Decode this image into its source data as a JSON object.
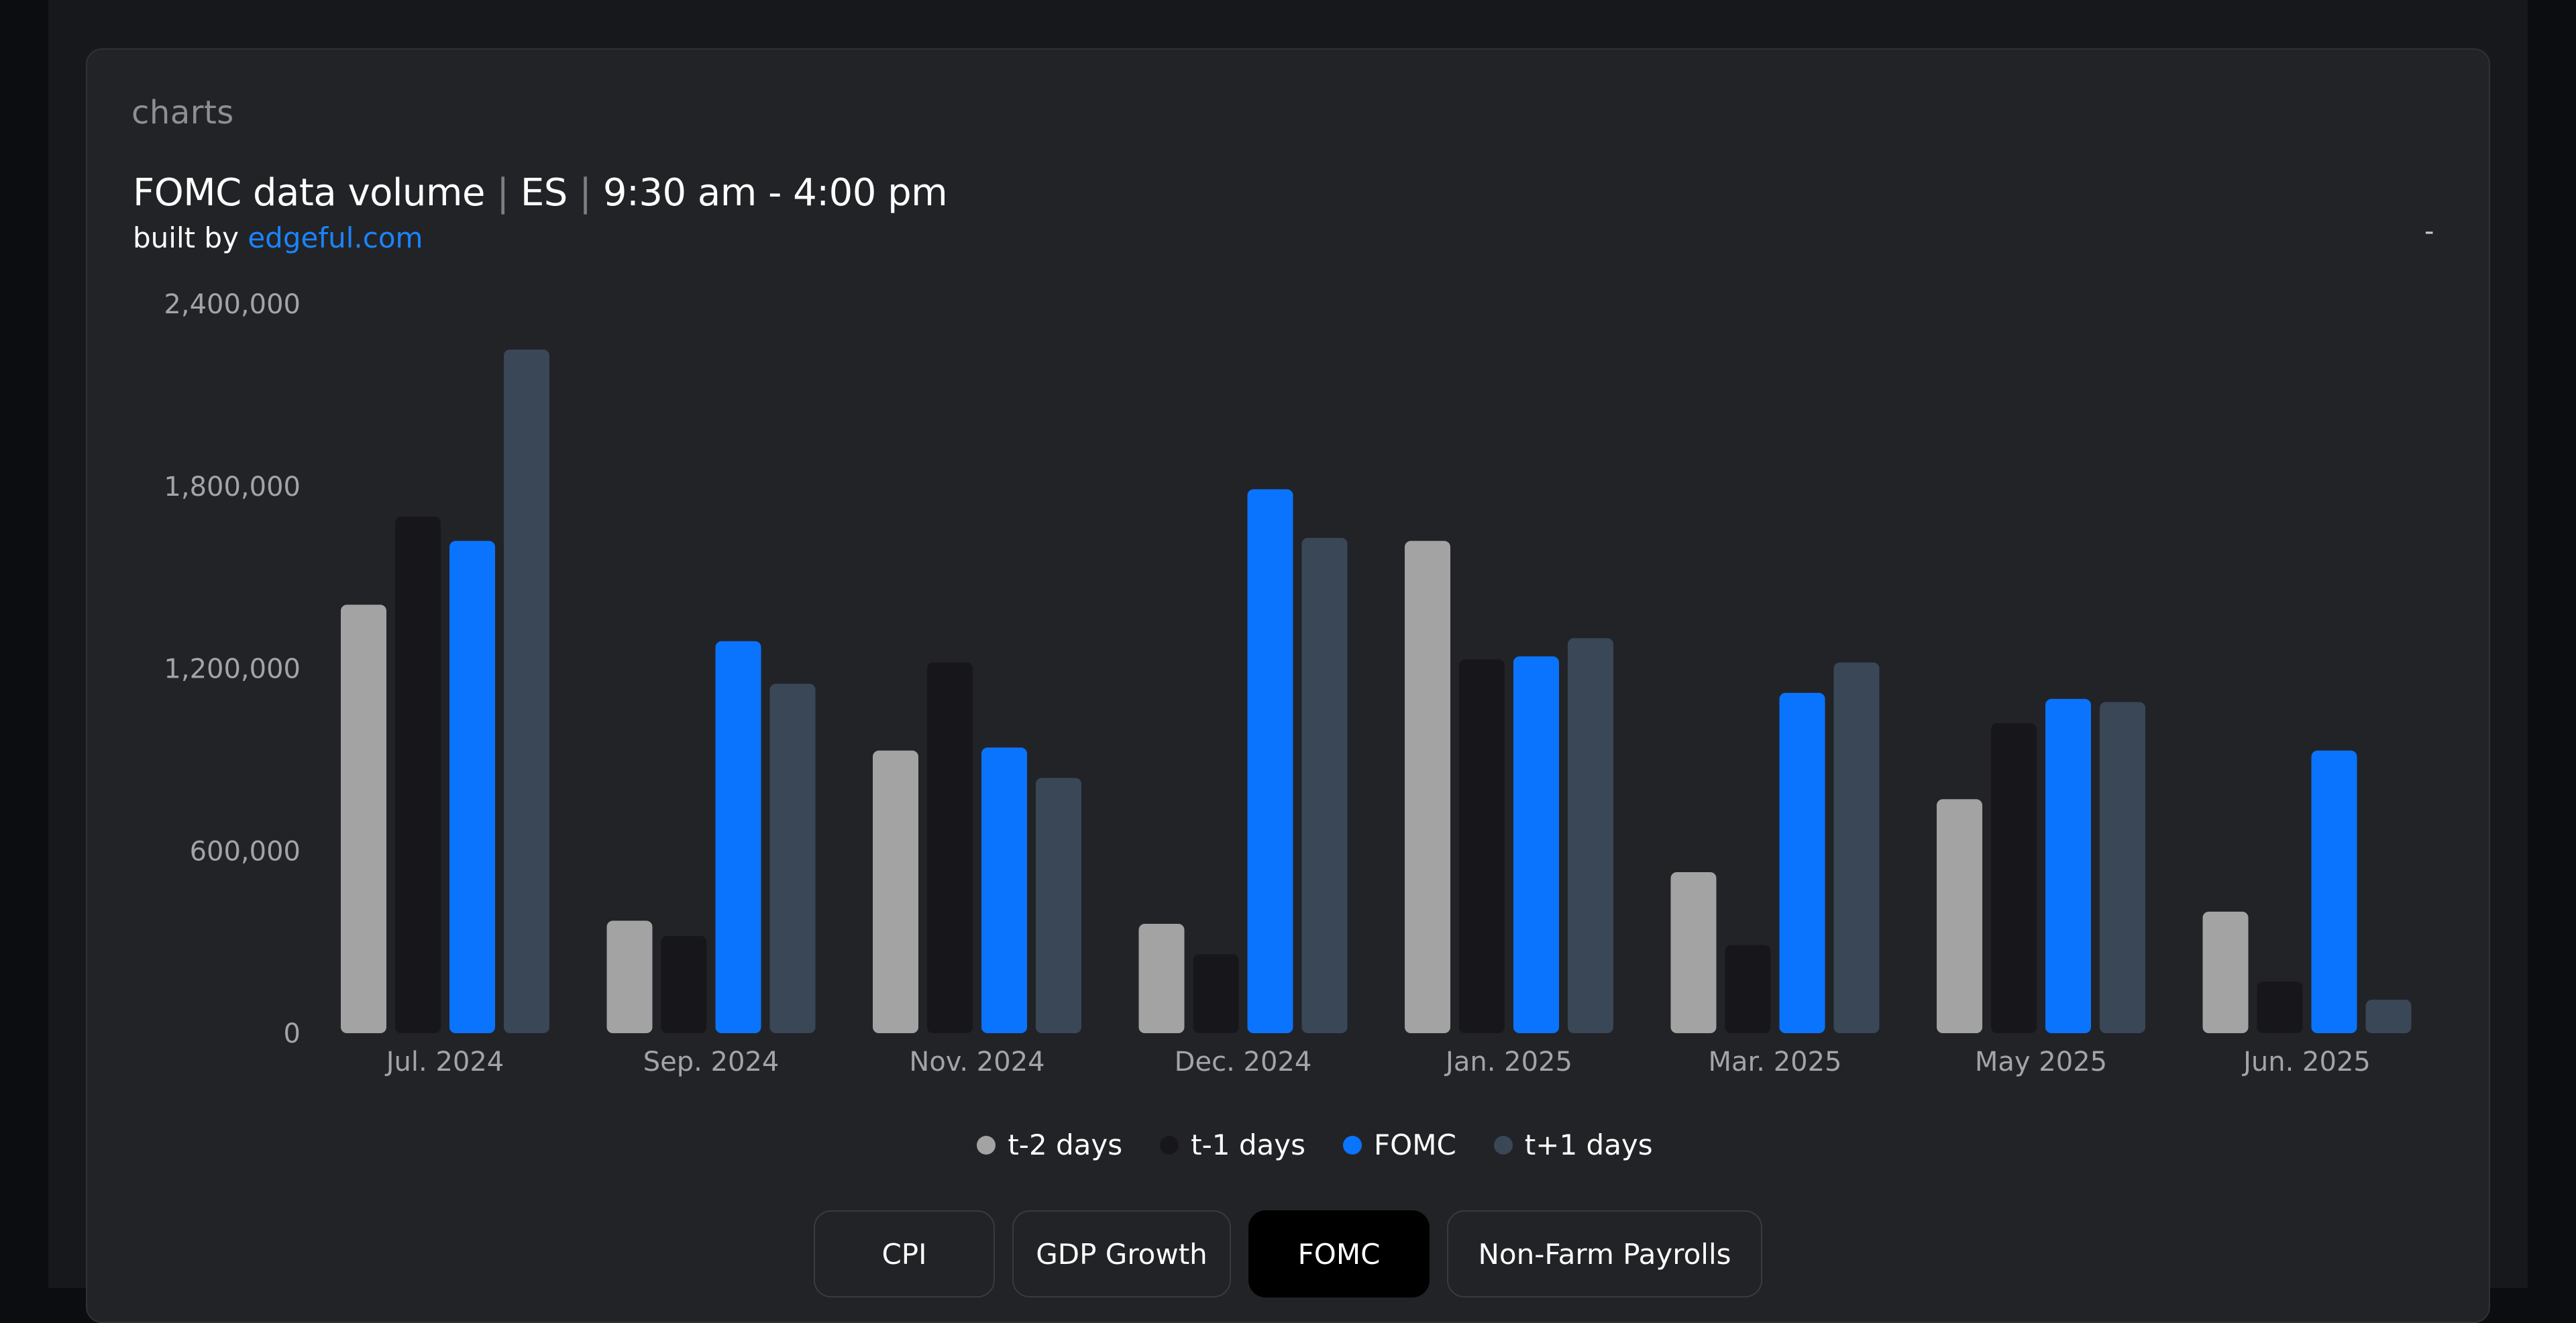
{
  "header": {
    "section_label": "charts",
    "title_part1": "FOMC data volume",
    "title_sep": "|",
    "title_part2": "ES",
    "title_part3": "9:30 am - 4:00 pm",
    "built_by": "built by",
    "built_by_link": "edgeful.com",
    "menu_glyph": "-"
  },
  "tabs": [
    {
      "label": "CPI",
      "active": false
    },
    {
      "label": "GDP Growth",
      "active": false
    },
    {
      "label": "FOMC",
      "active": true
    },
    {
      "label": "Non-Farm Payrolls",
      "active": false
    }
  ],
  "chart_data": {
    "type": "bar",
    "title": "FOMC data volume | ES | 9:30 am - 4:00 pm",
    "xlabel": "",
    "ylabel": "",
    "ylim": [
      0,
      2400000
    ],
    "yticks": [
      0,
      600000,
      1200000,
      1800000,
      2400000
    ],
    "ytick_labels": [
      "0",
      "600,000",
      "1,200,000",
      "1,800,000",
      "2,400,000"
    ],
    "grid": false,
    "legend_position": "bottom",
    "categories": [
      "Jul. 2024",
      "Sep. 2024",
      "Nov. 2024",
      "Dec. 2024",
      "Jan. 2025",
      "Mar. 2025",
      "May 2025",
      "Jun. 2025"
    ],
    "series": [
      {
        "name": "t-2 days",
        "color": "#a3a3a3",
        "values": [
          1410000,
          370000,
          930000,
          360000,
          1620000,
          530000,
          770000,
          400000
        ]
      },
      {
        "name": "t-1 days",
        "color": "#17171b",
        "values": [
          1700000,
          320000,
          1220000,
          260000,
          1230000,
          290000,
          1020000,
          170000
        ]
      },
      {
        "name": "FOMC",
        "color": "#0a74ff",
        "values": [
          1620000,
          1290000,
          940000,
          1790000,
          1240000,
          1120000,
          1100000,
          930000
        ]
      },
      {
        "name": "t+1 days",
        "color": "#394757",
        "values": [
          2250000,
          1150000,
          840000,
          1630000,
          1300000,
          1220000,
          1090000,
          110000
        ]
      }
    ]
  }
}
